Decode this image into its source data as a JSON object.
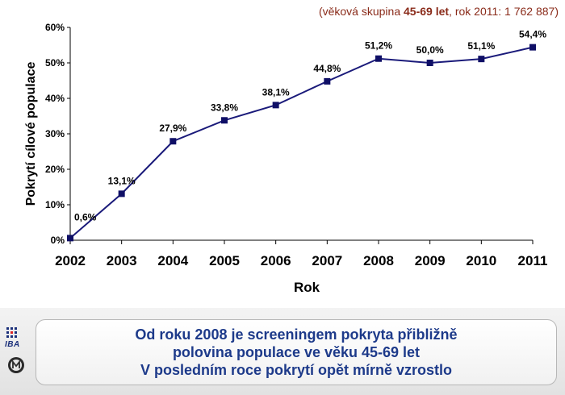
{
  "subtitle": {
    "prefix": "(věková skupina ",
    "bold1": "45-69 let",
    "mid": ", rok 2011: 1 762 887)"
  },
  "chart_data": {
    "type": "line",
    "categories": [
      "2002",
      "2003",
      "2004",
      "2005",
      "2006",
      "2007",
      "2008",
      "2009",
      "2010",
      "2011"
    ],
    "values": [
      0.6,
      13.1,
      27.9,
      33.8,
      38.1,
      44.8,
      51.2,
      50.0,
      51.1,
      54.4
    ],
    "data_labels": [
      "0,6%",
      "13,1%",
      "27,9%",
      "33,8%",
      "38,1%",
      "44,8%",
      "51,2%",
      "50,0%",
      "51,1%",
      "54,4%"
    ],
    "xlabel": "Rok",
    "ylabel": "Pokrytí cílové populace",
    "ylim": [
      0,
      60
    ],
    "yticks": [
      0,
      10,
      20,
      30,
      40,
      50,
      60
    ],
    "ytick_labels": [
      "0%",
      "10%",
      "20%",
      "30%",
      "40%",
      "50%",
      "60%"
    ],
    "grid": false,
    "line_color": "#1a1a7a",
    "marker_color": "#0f0f66"
  },
  "footer": {
    "line1": "Od roku 2008 je screeningem pokryta přibližně",
    "line2": "polovina populace ve věku 45-69 let",
    "line3": "V posledním roce pokrytí opět mírně vzrostlo",
    "logo_text": "IBA"
  }
}
